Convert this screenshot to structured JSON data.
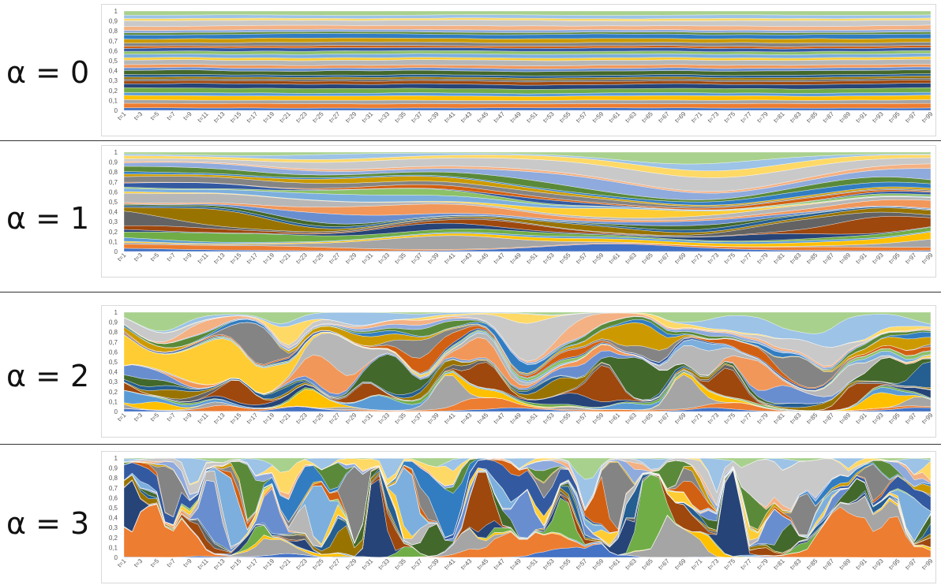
{
  "chart_data": [
    {
      "type": "area",
      "label": "α = 0",
      "ylim": [
        0,
        1
      ],
      "yticks": [
        "0",
        "0,1",
        "0,2",
        "0,3",
        "0,4",
        "0,5",
        "0,6",
        "0,7",
        "0,8",
        "0,9",
        "1"
      ],
      "x": [
        "t=1",
        "t=3",
        "t=5",
        "t=7",
        "t=9",
        "t=11",
        "t=13",
        "t=15",
        "t=17",
        "t=19",
        "t=21",
        "t=23",
        "t=25",
        "t=27",
        "t=29",
        "t=31",
        "t=33",
        "t=35",
        "t=37",
        "t=39",
        "t=41",
        "t=43",
        "t=45",
        "t=47",
        "t=49",
        "t=51",
        "t=53",
        "t=55",
        "t=57",
        "t=59",
        "t=61",
        "t=63",
        "t=65",
        "t=67",
        "t=69",
        "t=71",
        "t=73",
        "t=75",
        "t=77",
        "t=79",
        "t=81",
        "t=83",
        "t=85",
        "t=87",
        "t=89",
        "t=91",
        "t=93",
        "t=95",
        "t=97",
        "t=99"
      ],
      "stacked": true,
      "normalized": true,
      "grid": false,
      "n_series": 30,
      "seed": 11,
      "volatility": 0
    },
    {
      "type": "area",
      "label": "α = 1",
      "ylim": [
        0,
        1
      ],
      "yticks": [
        "0",
        "0,1",
        "0,2",
        "0,3",
        "0,4",
        "0,5",
        "0,6",
        "0,7",
        "0,8",
        "0,9",
        "1"
      ],
      "x": [
        "t=1",
        "t=3",
        "t=5",
        "t=7",
        "t=9",
        "t=11",
        "t=13",
        "t=15",
        "t=17",
        "t=19",
        "t=21",
        "t=23",
        "t=25",
        "t=27",
        "t=29",
        "t=31",
        "t=33",
        "t=35",
        "t=37",
        "t=39",
        "t=41",
        "t=43",
        "t=45",
        "t=47",
        "t=49",
        "t=51",
        "t=53",
        "t=55",
        "t=57",
        "t=59",
        "t=61",
        "t=63",
        "t=65",
        "t=67",
        "t=69",
        "t=71",
        "t=73",
        "t=75",
        "t=77",
        "t=79",
        "t=81",
        "t=83",
        "t=85",
        "t=87",
        "t=89",
        "t=91",
        "t=93",
        "t=95",
        "t=97",
        "t=99"
      ],
      "stacked": true,
      "normalized": true,
      "grid": false,
      "n_series": 30,
      "seed": 23,
      "volatility": 1
    },
    {
      "type": "area",
      "label": "α = 2",
      "ylim": [
        0,
        1
      ],
      "yticks": [
        "0",
        "0,1",
        "0,2",
        "0,3",
        "0,4",
        "0,5",
        "0,6",
        "0,7",
        "0,8",
        "0,9",
        "1"
      ],
      "x": [
        "t=1",
        "t=3",
        "t=5",
        "t=7",
        "t=9",
        "t=11",
        "t=13",
        "t=15",
        "t=17",
        "t=19",
        "t=21",
        "t=23",
        "t=25",
        "t=27",
        "t=29",
        "t=31",
        "t=33",
        "t=35",
        "t=37",
        "t=39",
        "t=41",
        "t=43",
        "t=45",
        "t=47",
        "t=49",
        "t=51",
        "t=53",
        "t=55",
        "t=57",
        "t=59",
        "t=61",
        "t=63",
        "t=65",
        "t=67",
        "t=69",
        "t=71",
        "t=73",
        "t=75",
        "t=77",
        "t=79",
        "t=81",
        "t=83",
        "t=85",
        "t=87",
        "t=89",
        "t=91",
        "t=93",
        "t=95",
        "t=97",
        "t=99"
      ],
      "stacked": true,
      "normalized": true,
      "grid": false,
      "n_series": 30,
      "seed": 37,
      "volatility": 2
    },
    {
      "type": "area",
      "label": "α = 3",
      "ylim": [
        0,
        1
      ],
      "yticks": [
        "0",
        "0,1",
        "0,2",
        "0,3",
        "0,4",
        "0,5",
        "0,6",
        "0,7",
        "0,8",
        "0,9",
        "1"
      ],
      "x": [
        "t=1",
        "t=3",
        "t=5",
        "t=7",
        "t=9",
        "t=11",
        "t=13",
        "t=15",
        "t=17",
        "t=19",
        "t=21",
        "t=23",
        "t=25",
        "t=27",
        "t=29",
        "t=31",
        "t=33",
        "t=35",
        "t=37",
        "t=39",
        "t=41",
        "t=43",
        "t=45",
        "t=47",
        "t=49",
        "t=51",
        "t=53",
        "t=55",
        "t=57",
        "t=59",
        "t=61",
        "t=63",
        "t=65",
        "t=67",
        "t=69",
        "t=71",
        "t=73",
        "t=75",
        "t=77",
        "t=79",
        "t=81",
        "t=83",
        "t=85",
        "t=87",
        "t=89",
        "t=91",
        "t=93",
        "t=95",
        "t=97",
        "t=99"
      ],
      "stacked": true,
      "normalized": true,
      "grid": false,
      "n_series": 30,
      "seed": 53,
      "volatility": 3
    }
  ],
  "colors": [
    "#4472c4",
    "#ed7d31",
    "#a5a5a5",
    "#ffc000",
    "#5b9bd5",
    "#70ad47",
    "#264478",
    "#9e480e",
    "#636363",
    "#997300",
    "#255e91",
    "#43682b",
    "#698ed0",
    "#f1975a",
    "#b7b7b7",
    "#ffcd33",
    "#7cafdd",
    "#8cc168",
    "#335aa1",
    "#d26012",
    "#848484",
    "#cc9a00",
    "#327dc2",
    "#5a8a39",
    "#8faadc",
    "#f4b183",
    "#c9c9c9",
    "#ffd966",
    "#9dc3e6",
    "#a9d18e"
  ]
}
